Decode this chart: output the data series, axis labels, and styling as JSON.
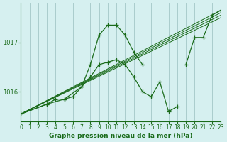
{
  "title": "Graphe pression niveau de la mer (hPa)",
  "bg_color": "#d6f0f0",
  "grid_color": "#aacccc",
  "line_color": "#1a6b1a",
  "xlim": [
    0,
    23
  ],
  "ylim": [
    1015.4,
    1017.8
  ],
  "yticks": [
    1016,
    1017
  ],
  "xticks": [
    0,
    1,
    2,
    3,
    4,
    5,
    6,
    7,
    8,
    9,
    10,
    11,
    12,
    13,
    14,
    15,
    16,
    17,
    18,
    19,
    20,
    21,
    22,
    23
  ],
  "series_wavy": {
    "x": [
      0,
      3,
      5,
      7,
      8,
      9,
      10,
      11,
      12,
      13,
      14
    ],
    "y": [
      1015.55,
      1015.75,
      1015.85,
      1016.1,
      1016.55,
      1017.15,
      1017.35,
      1017.35,
      1017.15,
      1016.8,
      1016.55
    ]
  },
  "series_zigzag_seg1": {
    "x": [
      0,
      3,
      4,
      5,
      6,
      7,
      8,
      9,
      10,
      11,
      12,
      13,
      14,
      15,
      16,
      17,
      18
    ],
    "y": [
      1015.55,
      1015.75,
      1015.85,
      1015.85,
      1015.9,
      1016.1,
      1016.3,
      1016.55,
      1016.6,
      1016.65,
      1016.55,
      1016.3,
      1016.0,
      1015.9,
      1016.2,
      1015.6,
      1015.7
    ]
  },
  "series_zigzag_seg2": {
    "x": [
      19,
      20,
      21,
      22,
      23
    ],
    "y": [
      1016.55,
      1017.1,
      1017.1,
      1017.55,
      1017.65
    ]
  },
  "series_straight": [
    {
      "x": [
        0,
        23
      ],
      "y": [
        1015.55,
        1017.65
      ]
    },
    {
      "x": [
        0,
        23
      ],
      "y": [
        1015.55,
        1017.6
      ]
    },
    {
      "x": [
        0,
        23
      ],
      "y": [
        1015.55,
        1017.55
      ]
    },
    {
      "x": [
        0,
        23
      ],
      "y": [
        1015.55,
        1017.5
      ]
    }
  ]
}
